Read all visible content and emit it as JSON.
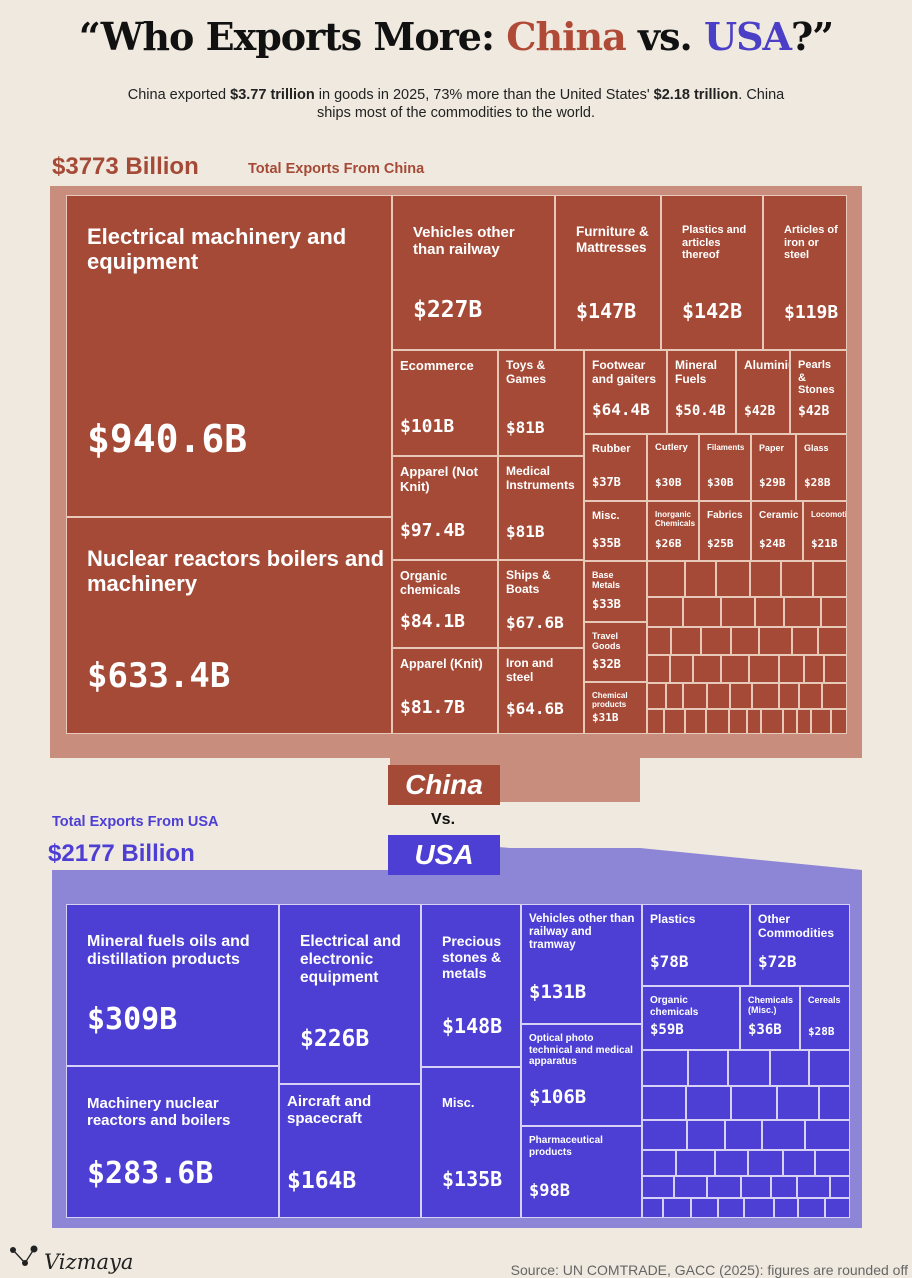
{
  "header": {
    "title_pre": "“Who Exports More: ",
    "title_china": "China",
    "title_mid": " vs. ",
    "title_usa": "USA",
    "title_post": "?”",
    "subtitle_1": "China exported ",
    "subtitle_b1": "$3.77 trillion",
    "subtitle_2": " in goods in 2025, 73% more than the United States' ",
    "subtitle_b2": "$2.18 trillion",
    "subtitle_3": ". China ships most of the commodities to the world."
  },
  "china": {
    "total": "$3773 Billion",
    "label": "Total Exports From China",
    "tag": "China"
  },
  "usa": {
    "total": "$2177 Billion",
    "label": "Total Exports From USA",
    "tag": "USA"
  },
  "vs": "Vs.",
  "footer": {
    "brand": "Vizmaya",
    "source": "Source: UN COMTRADE, GACC (2025): figures are rounded off"
  },
  "colors": {
    "china": "#a54a36",
    "china_panel": "#c98d7d",
    "usa": "#4d3fd3",
    "usa_panel": "#8d85d6"
  },
  "chart_data": [
    {
      "type": "treemap",
      "title": "Total Exports From China",
      "unit": "$ billions",
      "total": 3773,
      "categories": [
        "Electrical machinery and equipment",
        "Nuclear reactors boilers and machinery",
        "Vehicles other than railway",
        "Furniture & Mattresses",
        "Plastics and articles thereof",
        "Articles of iron or steel",
        "Ecommerce",
        "Toys & Games",
        "Footwear and gaiters",
        "Mineral Fuels",
        "Aluminium",
        "Pearls & Stones",
        "Apparel (Not Knit)",
        "Medical Instruments",
        "Rubber",
        "Cutlery",
        "Filaments",
        "Paper",
        "Glass",
        "Misc.",
        "Inorganic Chemicals",
        "Fabrics",
        "Ceramic",
        "Locomotives",
        "Organic chemicals",
        "Ships & Boats",
        "Base Metals",
        "Travel Goods",
        "Apparel (Knit)",
        "Iron and steel",
        "Chemical products"
      ],
      "values": [
        940.6,
        633.4,
        227,
        147,
        142,
        119,
        101,
        81,
        64.4,
        50.4,
        42,
        42,
        97.4,
        81,
        37,
        30,
        30,
        29,
        28,
        35,
        26,
        25,
        24,
        21,
        84.1,
        67.6,
        33,
        32,
        81.7,
        64.6,
        31
      ],
      "value_labels": [
        "$940.6B",
        "$633.4B",
        "$227B",
        "$147B",
        "$142B",
        "$119B",
        "$101B",
        "$81B",
        "$64.4B",
        "$50.4B",
        "$42B",
        "$42B",
        "$97.4B",
        "$81B",
        "$37B",
        "$30B",
        "$30B",
        "$29B",
        "$28B",
        "$35B",
        "$26B",
        "$25B",
        "$24B",
        "$21B",
        "$84.1B",
        "$67.6B",
        "$33B",
        "$32B",
        "$81.7B",
        "$64.6B",
        "$31B"
      ]
    },
    {
      "type": "treemap",
      "title": "Total Exports From USA",
      "unit": "$ billions",
      "total": 2177,
      "categories": [
        "Mineral fuels oils and distillation products",
        "Machinery nuclear reactors and boilers",
        "Electrical and electronic equipment",
        "Aircraft and spacecraft",
        "Precious stones & metals",
        "Misc.",
        "Vehicles other than railway and tramway",
        "Optical photo technical and medical apparatus",
        "Pharmaceutical products",
        "Plastics",
        "Other Commodities",
        "Organic chemicals",
        "Chemicals (Misc.)",
        "Cereals"
      ],
      "values": [
        309,
        283.6,
        226,
        164,
        148,
        135,
        131,
        106,
        98,
        78,
        72,
        59,
        36,
        28
      ],
      "value_labels": [
        "$309B",
        "$283.6B",
        "$226B",
        "$164B",
        "$148B",
        "$135B",
        "$131B",
        "$106B",
        "$98B",
        "$78B",
        "$72B",
        "$59B",
        "$36B",
        "$28B"
      ]
    }
  ]
}
